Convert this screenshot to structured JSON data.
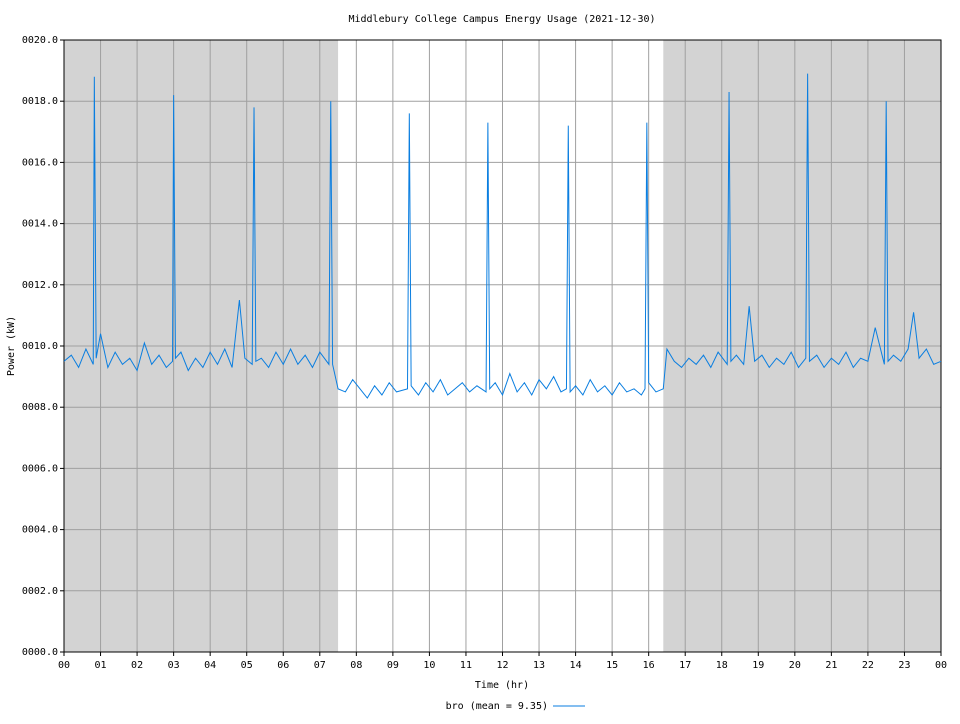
{
  "chart_data": {
    "type": "line",
    "title": "Middlebury College Campus Energy Usage (2021-12-30)",
    "xlabel": "Time (hr)",
    "ylabel": "Power (kW)",
    "xlim": [
      0,
      24
    ],
    "ylim": [
      0,
      20
    ],
    "xticks": [
      {
        "value": 0,
        "label": "00"
      },
      {
        "value": 1,
        "label": "01"
      },
      {
        "value": 2,
        "label": "02"
      },
      {
        "value": 3,
        "label": "03"
      },
      {
        "value": 4,
        "label": "04"
      },
      {
        "value": 5,
        "label": "05"
      },
      {
        "value": 6,
        "label": "06"
      },
      {
        "value": 7,
        "label": "07"
      },
      {
        "value": 8,
        "label": "08"
      },
      {
        "value": 9,
        "label": "09"
      },
      {
        "value": 10,
        "label": "10"
      },
      {
        "value": 11,
        "label": "11"
      },
      {
        "value": 12,
        "label": "12"
      },
      {
        "value": 13,
        "label": "13"
      },
      {
        "value": 14,
        "label": "14"
      },
      {
        "value": 15,
        "label": "15"
      },
      {
        "value": 16,
        "label": "16"
      },
      {
        "value": 17,
        "label": "17"
      },
      {
        "value": 18,
        "label": "18"
      },
      {
        "value": 19,
        "label": "19"
      },
      {
        "value": 20,
        "label": "20"
      },
      {
        "value": 21,
        "label": "21"
      },
      {
        "value": 22,
        "label": "22"
      },
      {
        "value": 23,
        "label": "23"
      },
      {
        "value": 24,
        "label": "00"
      }
    ],
    "yticks": [
      {
        "value": 0,
        "label": "0000.0"
      },
      {
        "value": 2,
        "label": "0002.0"
      },
      {
        "value": 4,
        "label": "0004.0"
      },
      {
        "value": 6,
        "label": "0006.0"
      },
      {
        "value": 8,
        "label": "0008.0"
      },
      {
        "value": 10,
        "label": "0010.0"
      },
      {
        "value": 12,
        "label": "0012.0"
      },
      {
        "value": 14,
        "label": "0014.0"
      },
      {
        "value": 16,
        "label": "0016.0"
      },
      {
        "value": 18,
        "label": "0018.0"
      },
      {
        "value": 20,
        "label": "0020.0"
      }
    ],
    "grid": true,
    "legend": "bottom",
    "shaded_regions": [
      [
        0,
        7.5
      ],
      [
        16.4,
        24
      ]
    ],
    "shade_color": "#d3d3d3",
    "x": [
      0,
      0.2,
      0.4,
      0.6,
      0.8,
      0.83,
      0.88,
      1.0,
      1.2,
      1.4,
      1.6,
      1.8,
      2.0,
      2.2,
      2.4,
      2.6,
      2.8,
      2.97,
      3.0,
      3.05,
      3.2,
      3.4,
      3.6,
      3.8,
      4.0,
      4.2,
      4.4,
      4.6,
      4.8,
      4.95,
      5.15,
      5.2,
      5.25,
      5.4,
      5.6,
      5.8,
      6.0,
      6.2,
      6.4,
      6.6,
      6.8,
      7.0,
      7.25,
      7.3,
      7.35,
      7.5,
      7.7,
      7.9,
      8.1,
      8.3,
      8.5,
      8.7,
      8.9,
      9.1,
      9.4,
      9.45,
      9.5,
      9.7,
      9.9,
      10.1,
      10.3,
      10.5,
      10.7,
      10.9,
      11.1,
      11.3,
      11.55,
      11.6,
      11.65,
      11.8,
      12.0,
      12.2,
      12.4,
      12.6,
      12.8,
      13.0,
      13.2,
      13.4,
      13.6,
      13.75,
      13.8,
      13.85,
      14.0,
      14.2,
      14.4,
      14.6,
      14.8,
      15.0,
      15.2,
      15.4,
      15.6,
      15.8,
      15.9,
      15.95,
      16.0,
      16.2,
      16.4,
      16.5,
      16.7,
      16.9,
      17.1,
      17.3,
      17.5,
      17.7,
      17.9,
      18.15,
      18.2,
      18.25,
      18.4,
      18.6,
      18.75,
      18.9,
      19.1,
      19.3,
      19.5,
      19.7,
      19.9,
      20.1,
      20.3,
      20.35,
      20.4,
      20.6,
      20.8,
      21.0,
      21.2,
      21.4,
      21.6,
      21.8,
      22.0,
      22.2,
      22.45,
      22.5,
      22.55,
      22.7,
      22.9,
      23.1,
      23.25,
      23.4,
      23.6,
      23.8,
      24.0
    ],
    "series": [
      {
        "name": "bro (mean = 9.35)",
        "color": "#0a7ee0",
        "values": [
          9.5,
          9.7,
          9.3,
          9.9,
          9.4,
          18.8,
          9.6,
          10.4,
          9.3,
          9.8,
          9.4,
          9.6,
          9.2,
          10.1,
          9.4,
          9.7,
          9.3,
          9.5,
          18.2,
          9.6,
          9.8,
          9.2,
          9.6,
          9.3,
          9.8,
          9.4,
          9.9,
          9.3,
          11.5,
          9.6,
          9.4,
          17.8,
          9.5,
          9.6,
          9.3,
          9.8,
          9.4,
          9.9,
          9.4,
          9.7,
          9.3,
          9.8,
          9.4,
          18.0,
          9.4,
          8.6,
          8.5,
          8.9,
          8.6,
          8.3,
          8.7,
          8.4,
          8.8,
          8.5,
          8.6,
          17.6,
          8.7,
          8.4,
          8.8,
          8.5,
          8.9,
          8.4,
          8.6,
          8.8,
          8.5,
          8.7,
          8.5,
          17.3,
          8.6,
          8.8,
          8.4,
          9.1,
          8.5,
          8.8,
          8.4,
          8.9,
          8.6,
          9.0,
          8.5,
          8.6,
          17.2,
          8.5,
          8.7,
          8.4,
          8.9,
          8.5,
          8.7,
          8.4,
          8.8,
          8.5,
          8.6,
          8.4,
          8.6,
          17.3,
          8.8,
          8.5,
          8.6,
          9.9,
          9.5,
          9.3,
          9.6,
          9.4,
          9.7,
          9.3,
          9.8,
          9.4,
          18.3,
          9.5,
          9.7,
          9.4,
          11.3,
          9.5,
          9.7,
          9.3,
          9.6,
          9.4,
          9.8,
          9.3,
          9.6,
          18.9,
          9.5,
          9.7,
          9.3,
          9.6,
          9.4,
          9.8,
          9.3,
          9.6,
          9.5,
          10.6,
          9.4,
          18.0,
          9.5,
          9.7,
          9.5,
          9.9,
          11.1,
          9.6,
          9.9,
          9.4,
          9.5
        ]
      }
    ]
  }
}
